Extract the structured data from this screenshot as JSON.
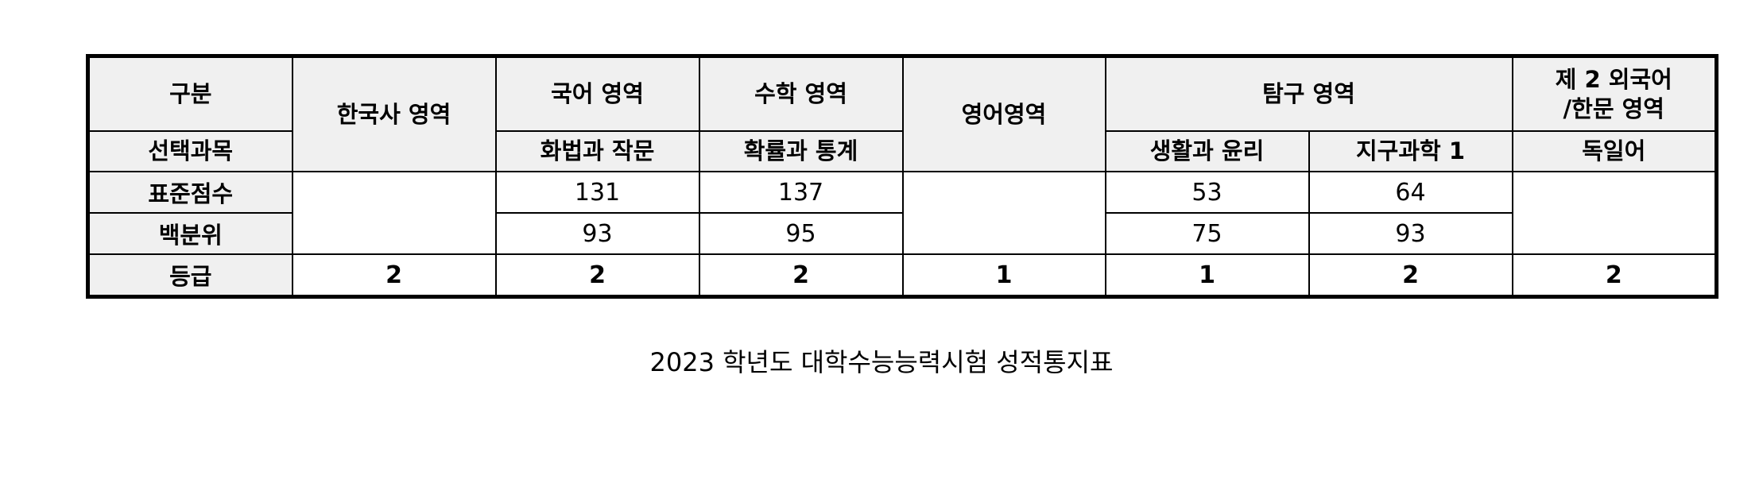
{
  "table": {
    "header_row1": {
      "category": "구분",
      "korean_history": "한국사 영역",
      "korean": "국어 영역",
      "math": "수학 영역",
      "english": "영어영역",
      "inquiry": "탐구 영역",
      "second_language": "제 2 외국어\n/한문 영역"
    },
    "header_row2": {
      "label": "선택과목",
      "korean": "화법과 작문",
      "math": "확률과 통계",
      "inquiry1": "생활과 윤리",
      "inquiry2": "지구과학 1",
      "second_language": "독일어"
    },
    "standard_score": {
      "label": "표준점수",
      "korean": "131",
      "math": "137",
      "inquiry1": "53",
      "inquiry2": "64"
    },
    "percentile": {
      "label": "백분위",
      "korean": "93",
      "math": "95",
      "inquiry1": "75",
      "inquiry2": "93"
    },
    "grade": {
      "label": "등급",
      "korean_history": "2",
      "korean": "2",
      "math": "2",
      "english": "1",
      "inquiry1": "1",
      "inquiry2": "2",
      "second_language": "2"
    }
  },
  "caption": "2023 학년도 대학수능능력시험 성적통지표"
}
